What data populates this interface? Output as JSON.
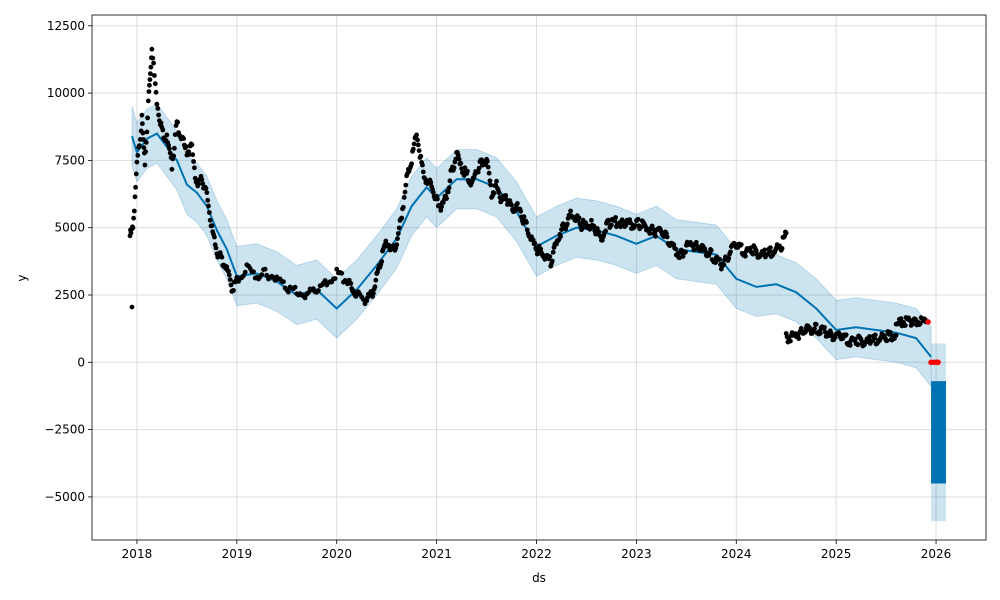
{
  "chart_data": {
    "type": "line",
    "title": "",
    "xlabel": "ds",
    "ylabel": "y",
    "grid": true,
    "legend": "none",
    "xlim": [
      2017.55,
      2026.5
    ],
    "ylim": [
      -6600,
      12900
    ],
    "x_ticks": [
      2018,
      2019,
      2020,
      2021,
      2022,
      2023,
      2024,
      2025,
      2026
    ],
    "x_tick_labels": [
      "2018",
      "2019",
      "2020",
      "2021",
      "2022",
      "2023",
      "2024",
      "2025",
      "2026"
    ],
    "y_ticks": [
      -5000,
      -2500,
      0,
      2500,
      5000,
      7500,
      10000,
      12500
    ],
    "y_tick_labels": [
      "−5000",
      "−2500",
      "0",
      "2500",
      "5000",
      "7500",
      "10000",
      "12500"
    ],
    "colors": {
      "forecast": "#0072B2",
      "band": "#0072B2",
      "observed": "#000000",
      "highlight": "#ff0000",
      "grid": "#dddddd"
    },
    "forecast": {
      "x": [
        2017.95,
        2018.0,
        2018.1,
        2018.2,
        2018.3,
        2018.4,
        2018.5,
        2018.6,
        2018.7,
        2018.8,
        2018.9,
        2019.0,
        2019.2,
        2019.4,
        2019.6,
        2019.8,
        2020.0,
        2020.2,
        2020.4,
        2020.6,
        2020.75,
        2020.9,
        2021.0,
        2021.2,
        2021.4,
        2021.6,
        2021.8,
        2022.0,
        2022.2,
        2022.4,
        2022.6,
        2022.8,
        2023.0,
        2023.2,
        2023.4,
        2023.6,
        2023.8,
        2024.0,
        2024.2,
        2024.4,
        2024.6,
        2024.8,
        2025.0,
        2025.2,
        2025.4,
        2025.6,
        2025.8,
        2025.95
      ],
      "y": [
        8400,
        7800,
        8300,
        8500,
        8000,
        7500,
        6600,
        6300,
        5800,
        4900,
        4200,
        3200,
        3300,
        3000,
        2500,
        2700,
        2000,
        2700,
        3600,
        4600,
        5800,
        6500,
        6100,
        6800,
        6800,
        6500,
        5600,
        4300,
        4700,
        5000,
        4900,
        4700,
        4400,
        4700,
        4200,
        4100,
        4000,
        3100,
        2800,
        2900,
        2600,
        2000,
        1200,
        1300,
        1200,
        1100,
        900,
        200
      ]
    },
    "forecast_upper": [
      9500,
      8900,
      9400,
      9600,
      9100,
      8600,
      7700,
      7400,
      6900,
      6000,
      5300,
      4300,
      4400,
      4100,
      3600,
      3800,
      3100,
      3800,
      4700,
      5700,
      6900,
      7600,
      7200,
      7900,
      7900,
      7600,
      6700,
      5400,
      5800,
      6100,
      6000,
      5800,
      5500,
      5800,
      5300,
      5200,
      5100,
      4200,
      3900,
      4000,
      3700,
      3100,
      2300,
      2400,
      2300,
      2200,
      2000,
      1300
    ],
    "forecast_lower": [
      7300,
      6700,
      7200,
      7400,
      6900,
      6400,
      5500,
      5200,
      4700,
      3800,
      3100,
      2100,
      2200,
      1900,
      1400,
      1600,
      900,
      1600,
      2500,
      3500,
      4700,
      5400,
      5000,
      5700,
      5700,
      5400,
      4500,
      3200,
      3600,
      3900,
      3800,
      3600,
      3300,
      3600,
      3100,
      3000,
      2900,
      2000,
      1700,
      1800,
      1500,
      900,
      100,
      200,
      100,
      0,
      -200,
      -900
    ],
    "future": {
      "x_start": 2025.95,
      "x_end": 2026.1,
      "y_upper": -700,
      "y_lower": -4500,
      "band_upper": 700,
      "band_lower": -5900
    },
    "observed_segments": [
      {
        "x": [
          2017.93,
          2017.96,
          2018.0,
          2018.05,
          2018.08,
          2018.12,
          2018.15,
          2018.2,
          2018.25,
          2018.3,
          2018.35,
          2018.4,
          2018.45,
          2018.5,
          2018.55,
          2018.6,
          2018.65,
          2018.7,
          2018.75,
          2018.8,
          2018.85,
          2018.9,
          2018.95,
          2019.0,
          2019.1,
          2019.2,
          2019.3,
          2019.4,
          2019.5,
          2019.6,
          2019.7,
          2019.8,
          2019.9,
          2020.0,
          2020.1,
          2020.15,
          2020.2,
          2020.3,
          2020.35,
          2020.4,
          2020.45,
          2020.5,
          2020.55,
          2020.6,
          2020.65,
          2020.7,
          2020.75,
          2020.8,
          2020.85,
          2020.9,
          2020.95,
          2021.0,
          2021.05,
          2021.1,
          2021.15,
          2021.2,
          2021.25,
          2021.3,
          2021.35,
          2021.4,
          2021.45,
          2021.5,
          2021.55,
          2021.6,
          2021.65,
          2021.7,
          2021.75,
          2021.8,
          2021.85,
          2021.9,
          2021.95,
          2022.0,
          2022.05,
          2022.1,
          2022.15,
          2022.2,
          2022.25,
          2022.3,
          2022.35,
          2022.4,
          2022.45,
          2022.5,
          2022.55,
          2022.6,
          2022.65,
          2022.7,
          2022.75,
          2022.8,
          2022.85,
          2022.9,
          2022.95,
          2023.0,
          2023.05,
          2023.1,
          2023.15,
          2023.2,
          2023.25,
          2023.3,
          2023.35,
          2023.4,
          2023.45,
          2023.5,
          2023.55,
          2023.6,
          2023.65,
          2023.7,
          2023.75,
          2023.8,
          2023.85,
          2023.9,
          2023.95,
          2024.0,
          2024.05,
          2024.1,
          2024.15,
          2024.2,
          2024.25,
          2024.3,
          2024.35,
          2024.4,
          2024.45,
          2024.5
        ],
        "y": [
          4700,
          5000,
          7300,
          9000,
          7400,
          10000,
          11600,
          9700,
          8600,
          8300,
          7300,
          8900,
          8300,
          7800,
          8000,
          6500,
          6800,
          6300,
          4900,
          4100,
          3800,
          3500,
          2700,
          3000,
          3500,
          3200,
          3300,
          3100,
          2800,
          2600,
          2500,
          2700,
          2900,
          3300,
          3000,
          2800,
          2500,
          2300,
          2500,
          3200,
          3900,
          4500,
          4200,
          4400,
          5500,
          6800,
          7500,
          8500,
          7300,
          6600,
          6600,
          6000,
          5700,
          6200,
          7100,
          7700,
          7200,
          7000,
          6600,
          7100,
          7400,
          7500,
          6300,
          6600,
          6000,
          6100,
          5700,
          5800,
          5400,
          5100,
          4500,
          4200,
          4100,
          3900,
          3700,
          4500,
          4900,
          5100,
          5600,
          5300,
          5100,
          5100,
          5100,
          4900,
          4600,
          5100,
          5200,
          5200,
          5200,
          5200,
          5100,
          5200,
          5100,
          5000,
          4900,
          4800,
          4900,
          4700,
          4300,
          4100,
          4000,
          4300,
          4400,
          4300,
          4200,
          4100,
          4000,
          3800,
          3600,
          3800,
          4200,
          4300,
          4200,
          4100,
          4200,
          4100,
          4000,
          4000,
          4100,
          4200,
          4300,
          4800
        ]
      },
      {
        "x": [
          2024.5,
          2024.55,
          2024.6,
          2024.65,
          2024.7,
          2024.75,
          2024.8,
          2024.85,
          2024.9,
          2024.95,
          2025.0,
          2025.05,
          2025.1,
          2025.15,
          2025.2,
          2025.25,
          2025.3,
          2025.35,
          2025.4,
          2025.45,
          2025.5,
          2025.55,
          2025.6
        ],
        "y": [
          900,
          950,
          1000,
          1100,
          1200,
          1200,
          1250,
          1200,
          1100,
          1000,
          950,
          900,
          850,
          800,
          800,
          800,
          750,
          800,
          850,
          900,
          950,
          1000,
          1000
        ]
      },
      {
        "x": [
          2025.6,
          2025.65,
          2025.7,
          2025.75,
          2025.8,
          2025.85,
          2025.9
        ],
        "y": [
          1450,
          1500,
          1500,
          1500,
          1500,
          1500,
          1500
        ]
      }
    ],
    "outliers": [
      {
        "x": 2017.95,
        "y": 2050
      }
    ],
    "highlighted_points": [
      {
        "x": 2025.92,
        "y": 1500
      },
      {
        "x": 2025.95,
        "y": 0
      },
      {
        "x": 2025.98,
        "y": 0
      },
      {
        "x": 2026.01,
        "y": 0
      },
      {
        "x": 2026.02,
        "y": 0
      }
    ]
  }
}
